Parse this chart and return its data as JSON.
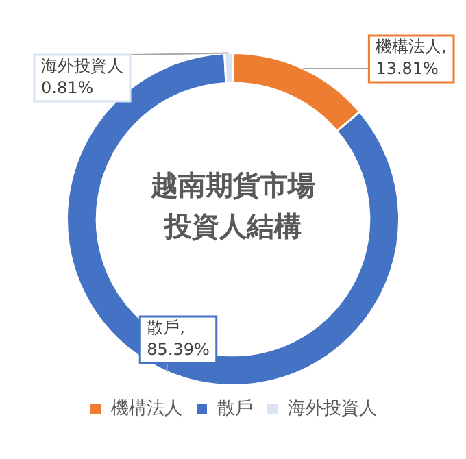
{
  "chart_data": {
    "type": "donut",
    "title": "越南期貨市場投資人結構",
    "categories": [
      "機構法人",
      "散戶",
      "海外投資人"
    ],
    "values": [
      13.81,
      85.39,
      0.81
    ],
    "colors": [
      "#ed7d31",
      "#4472c4",
      "#dae3f3"
    ],
    "value_labels": [
      "機構法人,\n13.81%",
      "散戶,\n85.39%",
      "海外投資人\n0.81%"
    ],
    "legend": "bottom"
  }
}
